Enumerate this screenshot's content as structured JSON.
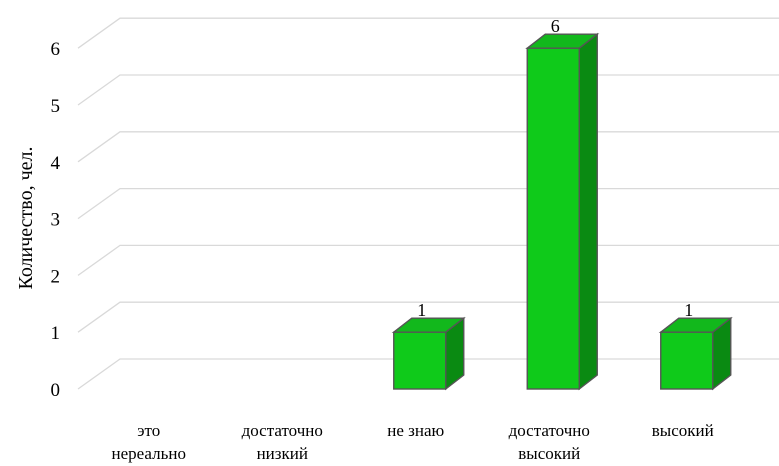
{
  "chart_data": {
    "type": "bar",
    "categories": [
      [
        "это",
        "нереально"
      ],
      [
        "достаточно",
        "низкий"
      ],
      [
        "не знаю"
      ],
      [
        "достаточно",
        "высокий"
      ],
      [
        "высокий"
      ]
    ],
    "values": [
      0,
      0,
      1,
      6,
      1
    ],
    "data_labels": [
      "",
      "",
      "1",
      "6",
      "1"
    ],
    "ylabel": "Количество, чел.",
    "xlabel": "",
    "ylim": [
      0,
      6
    ],
    "yticks": [
      "0",
      "1",
      "2",
      "3",
      "4",
      "5",
      "6"
    ],
    "grid": true,
    "legend": "none",
    "style": "3d-column",
    "colors": {
      "front": "#0fca1a",
      "side": "#0a8a12",
      "top": "#12b81c",
      "edge": "#555555",
      "grid": "#d9d9d9"
    }
  }
}
